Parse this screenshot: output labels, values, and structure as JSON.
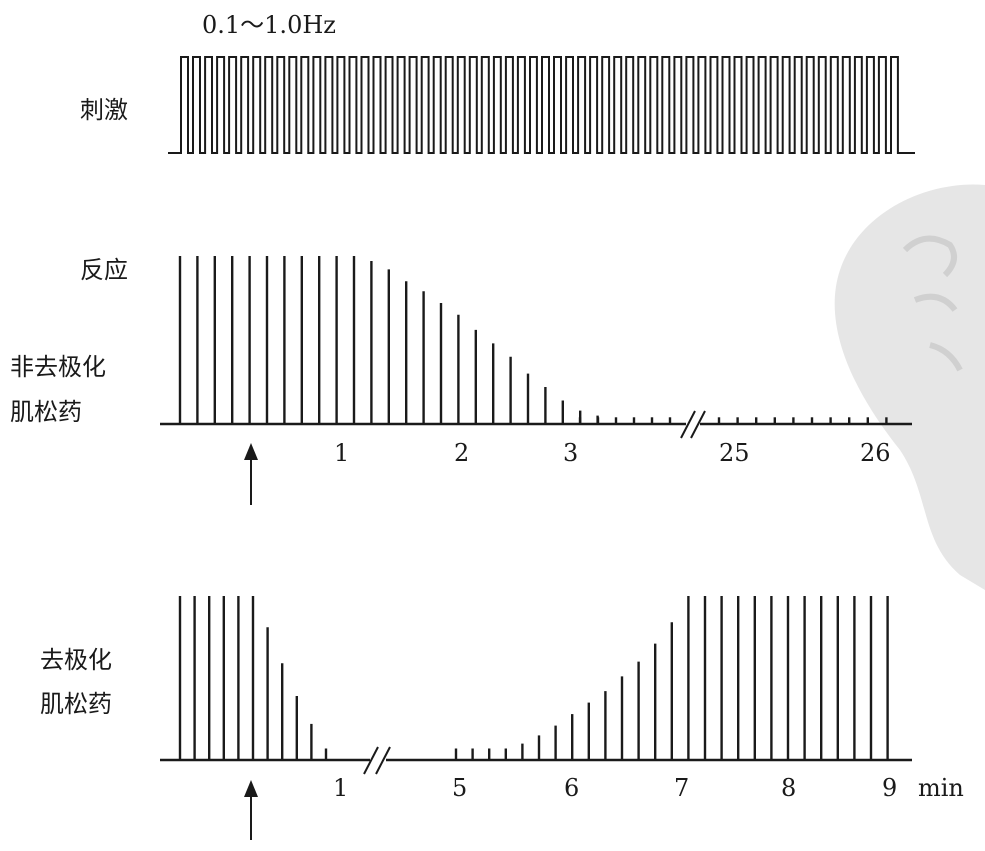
{
  "stimulus": {
    "frequency_label": "0.1～1.0Hz",
    "label": "刺激"
  },
  "response_label": "反应",
  "panel_nondepolarizing": {
    "label_line1": "非去极化",
    "label_line2": "肌松药",
    "ticks": [
      "1",
      "2",
      "3",
      "25",
      "26"
    ],
    "response_levels": [
      1,
      1,
      1,
      1,
      1,
      1,
      1,
      1,
      1,
      1,
      1,
      0.97,
      0.92,
      0.85,
      0.79,
      0.72,
      0.65,
      0.56,
      0.48,
      0.4,
      0.3,
      0.22,
      0.14,
      0.08,
      0.05,
      0.04,
      0.04,
      0.04,
      0.04,
      0.04,
      0.04,
      0.04,
      0.04,
      0.04,
      0.04,
      0.04,
      0.04,
      0.04,
      0.04,
      0.04,
      0.04
    ]
  },
  "panel_depolarizing": {
    "label_line1": "去极化",
    "label_line2": "肌松药",
    "ticks": [
      "1",
      "5",
      "6",
      "7",
      "8",
      "9"
    ],
    "unit": "min",
    "response_levels": [
      1,
      1,
      1,
      1,
      1,
      1,
      0.81,
      0.59,
      0.39,
      0.22,
      0.07,
      0.07,
      0.07,
      0.07,
      0.07,
      0.1,
      0.15,
      0.21,
      0.28,
      0.35,
      0.42,
      0.51,
      0.6,
      0.71,
      0.84,
      1,
      1,
      1,
      1,
      1,
      1,
      1,
      1,
      1,
      1,
      1,
      1,
      1
    ]
  },
  "colors": {
    "ink": "#1a1a1a",
    "watermark": "#d8d8d8"
  }
}
